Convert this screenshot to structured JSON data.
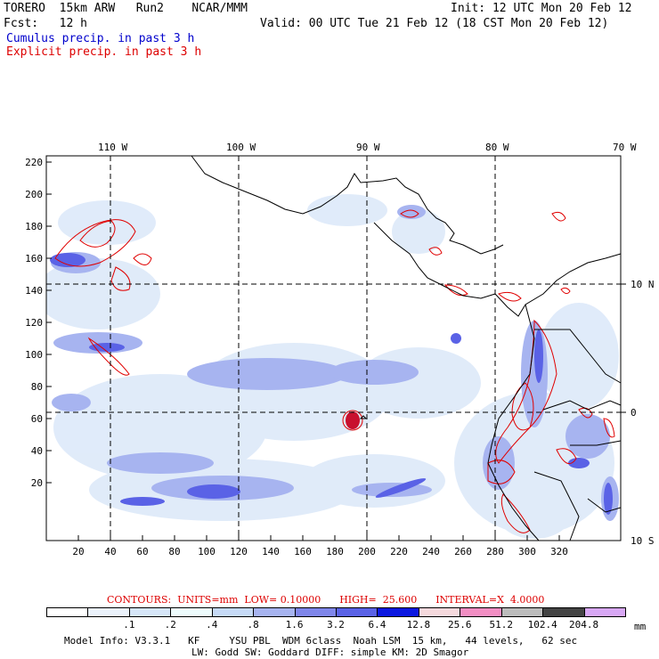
{
  "header": {
    "line1_left": "TORERO  15km ARW   Run2    NCAR/MMM",
    "line1_right": "Init: 12 UTC Mon 20 Feb 12",
    "line2_left": "Fcst:   12 h",
    "line2_right": "Valid: 00 UTC Tue 21 Feb 12 (18 CST Mon 20 Feb 12)",
    "legend_cumulus": "Cumulus precip. in past 3 h",
    "legend_explicit": "Explicit precip. in past 3 h"
  },
  "map": {
    "top_lon_labels": [
      "110 W",
      "100 W",
      "90 W",
      "80 W",
      "70 W"
    ],
    "right_lat_labels": [
      "10 N",
      "0",
      "10 S"
    ],
    "left_y_ticks": [
      "220",
      "200",
      "180",
      "160",
      "140",
      "120",
      "100",
      "80",
      "60",
      "40",
      "20"
    ],
    "bottom_x_ticks": [
      "20",
      "40",
      "60",
      "80",
      "100",
      "120",
      "140",
      "160",
      "180",
      "200",
      "220",
      "240",
      "260",
      "280",
      "300",
      "320"
    ],
    "colors": {
      "cumulus": "#4b55e8",
      "explicit": "#e00000",
      "coast": "#000000"
    }
  },
  "contours_line": "CONTOURS:  UNITS=mm  LOW= 0.10000      HIGH=  25.600      INTERVAL=X  4.0000",
  "colorbar": {
    "colors": [
      "#ffffff",
      "#ebf2fb",
      "#d6e6f8",
      "#eefcfd",
      "#c6daf6",
      "#a7b4f0",
      "#7f86ea",
      "#5a62e6",
      "#0c18e0",
      "#f5d9dd",
      "#f28ec3",
      "#bcbcbc",
      "#444444",
      "#d8a8f5"
    ],
    "labels": [
      ".1",
      ".2",
      ".4",
      ".8",
      "1.6",
      "3.2",
      "6.4",
      "12.8",
      "25.6",
      "51.2",
      "102.4",
      "204.8"
    ],
    "unit": "mm"
  },
  "footer": {
    "line1": "Model Info: V3.3.1   KF     YSU PBL  WDM 6class  Noah LSM  15 km,   44 levels,   62 sec",
    "line2": "LW: Godd SW: Goddard DIFF: simple KM: 2D Smagor"
  }
}
